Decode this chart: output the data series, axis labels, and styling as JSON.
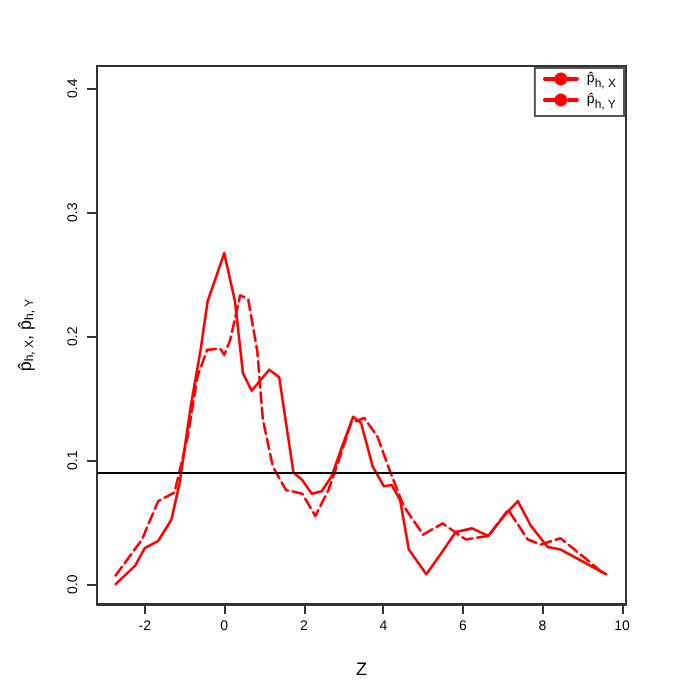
{
  "chart_data": {
    "type": "line",
    "xlabel": "Z",
    "ylabel": "p̂$_{h, X}$, p̂$_{h, Y}$",
    "series": [
      {
        "name": "p̂$_{h, X}$",
        "color": "#ff0000",
        "line_style": "solid",
        "x": [
          -2.73,
          -2.24,
          -2.0,
          -1.66,
          -1.33,
          -1.12,
          -0.84,
          -0.59,
          -0.42,
          0.0,
          0.27,
          0.47,
          0.69,
          1.13,
          1.38,
          1.74,
          1.96,
          2.2,
          2.45,
          2.7,
          2.94,
          3.24,
          3.44,
          3.73,
          4.01,
          4.21,
          4.42,
          4.64,
          5.08,
          5.41,
          5.82,
          6.23,
          6.64,
          7.06,
          7.38,
          7.71,
          8.13,
          8.45,
          9.6
        ],
        "values": [
          0.0,
          0.015,
          0.029,
          0.035,
          0.052,
          0.082,
          0.144,
          0.19,
          0.228,
          0.267,
          0.228,
          0.17,
          0.156,
          0.173,
          0.167,
          0.09,
          0.084,
          0.073,
          0.075,
          0.087,
          0.109,
          0.135,
          0.13,
          0.095,
          0.079,
          0.08,
          0.068,
          0.028,
          0.008,
          0.023,
          0.042,
          0.045,
          0.039,
          0.056,
          0.067,
          0.047,
          0.03,
          0.028,
          0.008
        ]
      },
      {
        "name": "p̂$_{h, Y}$",
        "color": "#ff0000",
        "line_style": "dashed",
        "x": [
          -2.73,
          -2.07,
          -1.66,
          -1.25,
          -0.92,
          -0.67,
          -0.43,
          -0.1,
          0.0,
          0.15,
          0.4,
          0.6,
          0.83,
          0.97,
          1.22,
          1.55,
          1.96,
          2.29,
          2.62,
          2.86,
          3.19,
          3.52,
          3.85,
          4.18,
          4.51,
          5.0,
          5.49,
          6.07,
          6.64,
          7.14,
          7.63,
          7.96,
          8.45,
          9.11,
          9.52
        ],
        "values": [
          0.007,
          0.036,
          0.067,
          0.074,
          0.119,
          0.168,
          0.189,
          0.19,
          0.185,
          0.197,
          0.233,
          0.23,
          0.188,
          0.133,
          0.095,
          0.076,
          0.073,
          0.055,
          0.076,
          0.098,
          0.13,
          0.134,
          0.119,
          0.09,
          0.063,
          0.04,
          0.049,
          0.036,
          0.039,
          0.06,
          0.036,
          0.032,
          0.037,
          0.02,
          0.009
        ]
      }
    ],
    "xlim": [
      -3.2,
      10.1
    ],
    "xticks": [
      -2,
      0,
      2,
      4,
      6,
      8,
      10
    ],
    "ylim": [
      -0.016,
      0.418
    ],
    "yticks": [
      {
        "value": 0,
        "label": "0.0"
      },
      {
        "value": 0.1,
        "label": "0.1"
      },
      {
        "value": 0.2,
        "label": "0.2"
      },
      {
        "value": 0.3,
        "label": "0.3"
      },
      {
        "value": 0.4,
        "label": "0.4"
      }
    ],
    "ref_lines": [
      {
        "axis": "y",
        "value": 0.09,
        "color": "#000000"
      }
    ],
    "legend": "top right",
    "grid": false,
    "marker": "none"
  }
}
